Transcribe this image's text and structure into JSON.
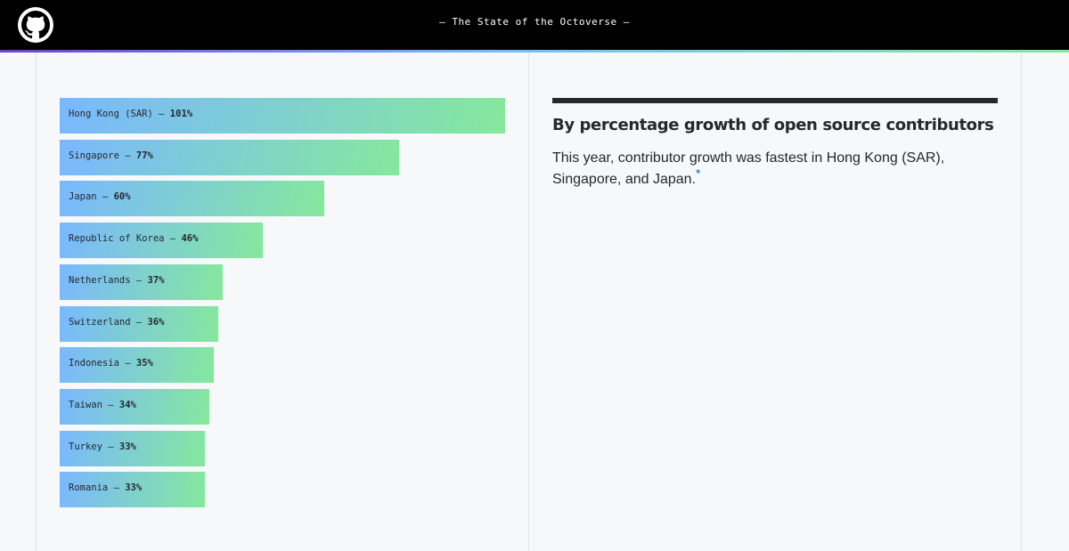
{
  "header": {
    "title": "— The State of the Octoverse —"
  },
  "panel": {
    "heading": "By percentage growth of open source contributors",
    "description": "This year, contributor growth was fastest in Hong Kong (SAR), Singapore, and Japan.",
    "footnote_marker": "*"
  },
  "chart_data": {
    "type": "bar",
    "orientation": "horizontal",
    "categories": [
      "Hong Kong (SAR)",
      "Singapore",
      "Japan",
      "Republic of Korea",
      "Netherlands",
      "Switzerland",
      "Indonesia",
      "Taiwan",
      "Turkey",
      "Romania"
    ],
    "values": [
      101,
      77,
      60,
      46,
      37,
      36,
      35,
      34,
      33,
      33
    ],
    "value_labels": [
      "101%",
      "77%",
      "60%",
      "46%",
      "37%",
      "36%",
      "35%",
      "34%",
      "33%",
      "33%"
    ],
    "label_separator": " – ",
    "xlim": [
      0,
      101
    ],
    "grid": false,
    "colors": {
      "bar_start": "#79b8ff",
      "bar_end": "#85e89d"
    }
  }
}
